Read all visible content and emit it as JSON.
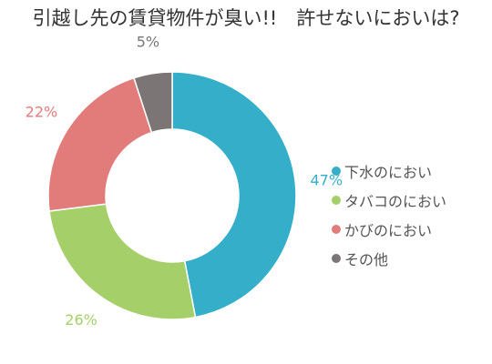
{
  "chart_data": {
    "type": "pie",
    "title": "引越し先の賃貸物件が臭い!!　許せないにおいは?",
    "categories": [
      "下水のにおい",
      "タバコのにおい",
      "かびのにおい",
      "その他"
    ],
    "values": [
      47,
      26,
      22,
      5
    ],
    "value_labels": [
      "47%",
      "26%",
      "22%",
      "5%"
    ],
    "colors": [
      "#35afc9",
      "#a5cf69",
      "#e27c7a",
      "#7b7675"
    ],
    "style": "donut",
    "legend": "right",
    "grid": false
  }
}
